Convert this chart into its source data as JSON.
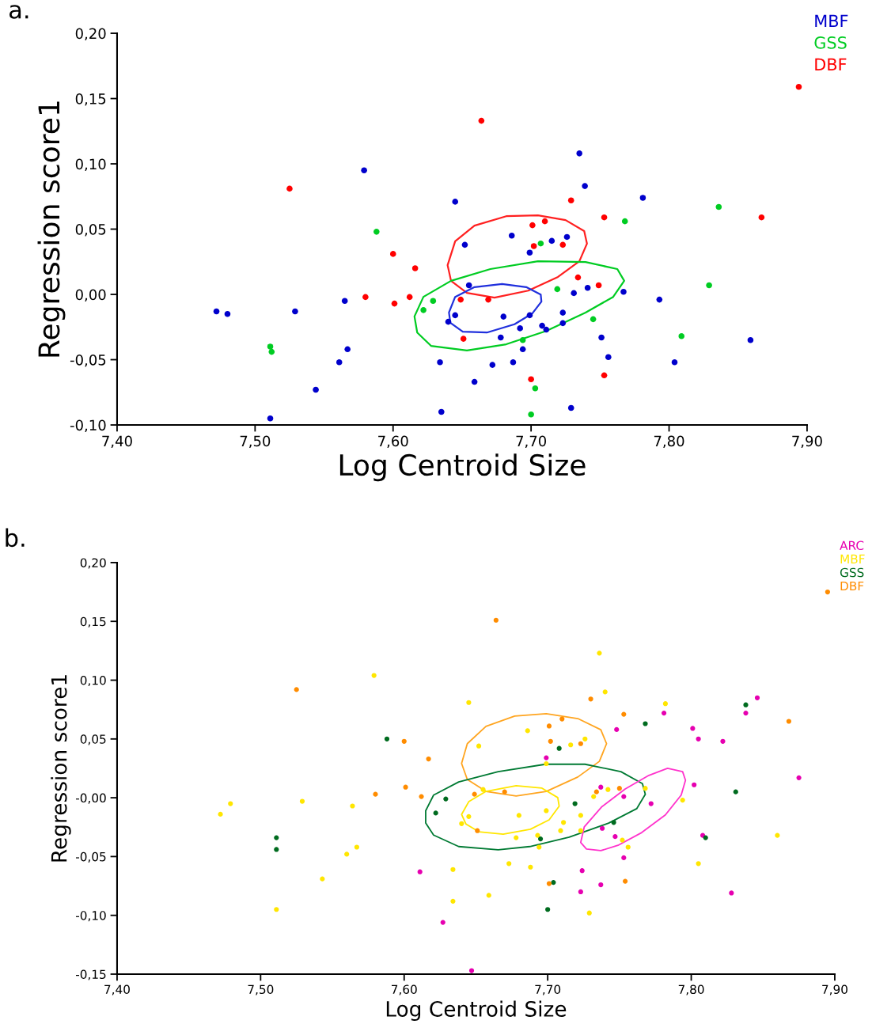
{
  "chart_data": [
    {
      "type": "scatter",
      "xlabel": "Log Centroid Size",
      "ylabel": "Regression score1",
      "annotations": [
        "a."
      ],
      "marker": "circle",
      "legend": "top right",
      "grid": false,
      "xlim": [
        7.4,
        7.9
      ],
      "xticks": [
        {
          "value": 7.4,
          "label": "7,40"
        },
        {
          "value": 7.5,
          "label": "7,50"
        },
        {
          "value": 7.6,
          "label": "7,60"
        },
        {
          "value": 7.7,
          "label": "7,70"
        },
        {
          "value": 7.8,
          "label": "7,80"
        },
        {
          "value": 7.9,
          "label": "7,90"
        }
      ],
      "ylim": [
        -0.1,
        0.2
      ],
      "yticks": [
        {
          "value": -0.1,
          "label": "-0,10"
        },
        {
          "value": -0.05,
          "label": "-0,05"
        },
        {
          "value": 0.0,
          "label": "0,00"
        },
        {
          "value": 0.05,
          "label": "0,05"
        },
        {
          "value": 0.1,
          "label": "0,10"
        },
        {
          "value": 0.15,
          "label": "0,15"
        },
        {
          "value": 0.2,
          "label": "0,20"
        }
      ],
      "series": [
        {
          "name": "MBF",
          "color": "#0000cc",
          "x": [
            7.472,
            7.48,
            7.529,
            7.565,
            7.567,
            7.561,
            7.579,
            7.544,
            7.511,
            7.645,
            7.652,
            7.64,
            7.645,
            7.634,
            7.635,
            7.735,
            7.739,
            7.781,
            7.686,
            7.715,
            7.726,
            7.699,
            7.655,
            7.731,
            7.741,
            7.767,
            7.793,
            7.68,
            7.699,
            7.723,
            7.723,
            7.692,
            7.708,
            7.711,
            7.678,
            7.751,
            7.694,
            7.756,
            7.672,
            7.687,
            7.804,
            7.859,
            7.659,
            7.729
          ],
          "values": [
            -0.013,
            -0.015,
            -0.013,
            -0.005,
            -0.042,
            -0.052,
            0.095,
            -0.073,
            -0.095,
            0.071,
            0.038,
            -0.021,
            -0.016,
            -0.052,
            -0.09,
            0.108,
            0.083,
            0.074,
            0.045,
            0.041,
            0.044,
            0.032,
            0.007,
            0.001,
            0.005,
            0.002,
            -0.004,
            -0.017,
            -0.016,
            -0.014,
            -0.022,
            -0.026,
            -0.024,
            -0.027,
            -0.033,
            -0.033,
            -0.042,
            -0.048,
            -0.054,
            -0.052,
            -0.052,
            -0.035,
            -0.067,
            -0.087
          ]
        },
        {
          "name": "GSS",
          "color": "#00cc22",
          "x": [
            7.511,
            7.512,
            7.588,
            7.622,
            7.629,
            7.768,
            7.836,
            7.707,
            7.719,
            7.745,
            7.694,
            7.829,
            7.809,
            7.703,
            7.7
          ],
          "values": [
            -0.04,
            -0.044,
            0.048,
            -0.012,
            -0.005,
            0.056,
            0.067,
            0.039,
            0.004,
            -0.019,
            -0.035,
            0.007,
            -0.032,
            -0.072,
            -0.092
          ]
        },
        {
          "name": "DBF",
          "color": "#ff0000",
          "x": [
            7.525,
            7.6,
            7.616,
            7.58,
            7.601,
            7.612,
            7.649,
            7.651,
            7.664,
            7.894,
            7.729,
            7.753,
            7.867,
            7.701,
            7.71,
            7.702,
            7.723,
            7.734,
            7.749,
            7.669,
            7.7,
            7.753
          ],
          "values": [
            0.081,
            0.031,
            0.02,
            -0.002,
            -0.007,
            -0.002,
            -0.004,
            -0.034,
            0.133,
            0.159,
            0.072,
            0.059,
            0.059,
            0.053,
            0.056,
            0.037,
            0.038,
            0.013,
            0.007,
            -0.004,
            -0.065,
            -0.062
          ]
        }
      ]
    },
    {
      "type": "scatter",
      "xlabel": "Log Centroid Size",
      "ylabel": "Regression score1",
      "annotations": [
        "b."
      ],
      "marker": "circle",
      "legend": "top right",
      "grid": false,
      "xlim": [
        7.4,
        7.9
      ],
      "xticks": [
        {
          "value": 7.4,
          "label": "7,40"
        },
        {
          "value": 7.5,
          "label": "7,50"
        },
        {
          "value": 7.6,
          "label": "7,60"
        },
        {
          "value": 7.7,
          "label": "7,70"
        },
        {
          "value": 7.8,
          "label": "7,80"
        },
        {
          "value": 7.9,
          "label": "7,90"
        }
      ],
      "ylim": [
        -0.15,
        0.2
      ],
      "yticks": [
        {
          "value": -0.15,
          "label": "-0,15"
        },
        {
          "value": -0.1,
          "label": "-0,10"
        },
        {
          "value": -0.05,
          "label": "-0,05"
        },
        {
          "value": 0.0,
          "label": "-0,00"
        },
        {
          "value": 0.05,
          "label": "0,05"
        },
        {
          "value": 0.1,
          "label": "0,10"
        },
        {
          "value": 0.15,
          "label": "0,15"
        },
        {
          "value": 0.2,
          "label": "0,20"
        }
      ],
      "series": [
        {
          "name": "ARC",
          "color": "#e600b0",
          "x": [
            7.611,
            7.627,
            7.846,
            7.781,
            7.838,
            7.748,
            7.801,
            7.805,
            7.822,
            7.699,
            7.875,
            7.737,
            7.753,
            7.802,
            7.772,
            7.738,
            7.747,
            7.808,
            7.753,
            7.724,
            7.737,
            7.723,
            7.828,
            7.647
          ],
          "values": [
            -0.063,
            -0.106,
            0.085,
            0.072,
            0.072,
            0.058,
            0.059,
            0.05,
            0.048,
            0.034,
            0.017,
            0.009,
            0.001,
            0.011,
            -0.005,
            -0.026,
            -0.033,
            -0.032,
            -0.051,
            -0.062,
            -0.074,
            -0.08,
            -0.081,
            -0.147
          ]
        },
        {
          "name": "MBF",
          "color": "#ffe600",
          "x": [
            7.579,
            7.472,
            7.479,
            7.529,
            7.564,
            7.511,
            7.543,
            7.56,
            7.567,
            7.634,
            7.634,
            7.64,
            7.736,
            7.74,
            7.645,
            7.782,
            7.652,
            7.686,
            7.716,
            7.726,
            7.699,
            7.655,
            7.742,
            7.732,
            7.768,
            7.794,
            7.645,
            7.68,
            7.699,
            7.723,
            7.711,
            7.709,
            7.723,
            7.678,
            7.693,
            7.694,
            7.752,
            7.756,
            7.673,
            7.688,
            7.659,
            7.729,
            7.805,
            7.86
          ],
          "values": [
            0.104,
            -0.014,
            -0.005,
            -0.003,
            -0.007,
            -0.095,
            -0.069,
            -0.048,
            -0.042,
            -0.061,
            -0.088,
            -0.022,
            0.123,
            0.09,
            0.081,
            0.08,
            0.044,
            0.057,
            0.045,
            0.05,
            0.029,
            0.007,
            0.007,
            0.001,
            0.008,
            -0.002,
            -0.016,
            -0.015,
            -0.011,
            -0.015,
            -0.021,
            -0.028,
            -0.028,
            -0.034,
            -0.032,
            -0.042,
            -0.036,
            -0.042,
            -0.056,
            -0.059,
            -0.083,
            -0.098,
            -0.056,
            -0.032
          ]
        },
        {
          "name": "GSS",
          "color": "#006b1f",
          "x": [
            7.588,
            7.511,
            7.511,
            7.622,
            7.629,
            7.838,
            7.768,
            7.708,
            7.719,
            7.746,
            7.695,
            7.831,
            7.81,
            7.704,
            7.7
          ],
          "values": [
            0.05,
            -0.034,
            -0.044,
            -0.013,
            -0.001,
            0.079,
            0.063,
            0.042,
            -0.005,
            -0.021,
            -0.035,
            0.005,
            -0.034,
            -0.072,
            -0.095
          ]
        },
        {
          "name": "DBF",
          "color": "#ff8c00",
          "x": [
            7.525,
            7.6,
            7.617,
            7.58,
            7.601,
            7.612,
            7.664,
            7.895,
            7.73,
            7.753,
            7.868,
            7.701,
            7.71,
            7.702,
            7.723,
            7.649,
            7.67,
            7.734,
            7.75,
            7.651,
            7.701,
            7.754
          ],
          "values": [
            0.092,
            0.048,
            0.033,
            0.003,
            0.009,
            0.001,
            0.151,
            0.175,
            0.084,
            0.071,
            0.065,
            0.061,
            0.067,
            0.048,
            0.046,
            0.003,
            0.005,
            0.005,
            0.008,
            -0.028,
            -0.073,
            -0.071
          ]
        }
      ]
    }
  ]
}
